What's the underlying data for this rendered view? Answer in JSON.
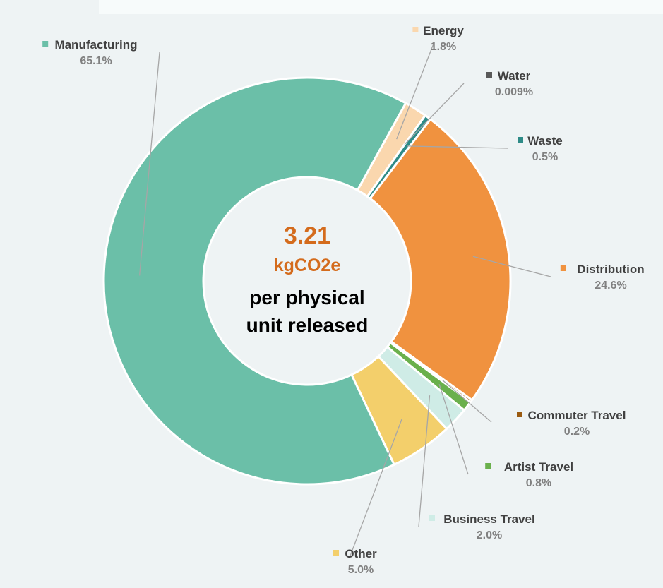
{
  "chart_data": {
    "type": "pie",
    "variant": "donut",
    "center": {
      "value": "3.21",
      "unit": "kgCO2e",
      "desc_line1": "per physical",
      "desc_line2": "unit released"
    },
    "slices": [
      {
        "name": "Energy",
        "label": "1.8%",
        "value": 1.8,
        "color": "#fad7ae"
      },
      {
        "name": "Water",
        "label": "0.009%",
        "value": 0.009,
        "color": "#595959"
      },
      {
        "name": "Waste",
        "label": "0.5%",
        "value": 0.5,
        "color": "#2e8b87"
      },
      {
        "name": "Distribution",
        "label": "24.6%",
        "value": 24.6,
        "color": "#f0923f"
      },
      {
        "name": "Commuter Travel",
        "label": "0.2%",
        "value": 0.2,
        "color": "#9a5a10"
      },
      {
        "name": "Artist Travel",
        "label": "0.8%",
        "value": 0.8,
        "color": "#6ab04c"
      },
      {
        "name": "Business Travel",
        "label": "2.0%",
        "value": 2.0,
        "color": "#cfece6"
      },
      {
        "name": "Other",
        "label": "5.0%",
        "value": 5.0,
        "color": "#f3cf6b"
      },
      {
        "name": "Manufacturing",
        "label": "65.1%",
        "value": 65.1,
        "color": "#6bbfa8"
      }
    ],
    "legend": "callout-labels"
  }
}
